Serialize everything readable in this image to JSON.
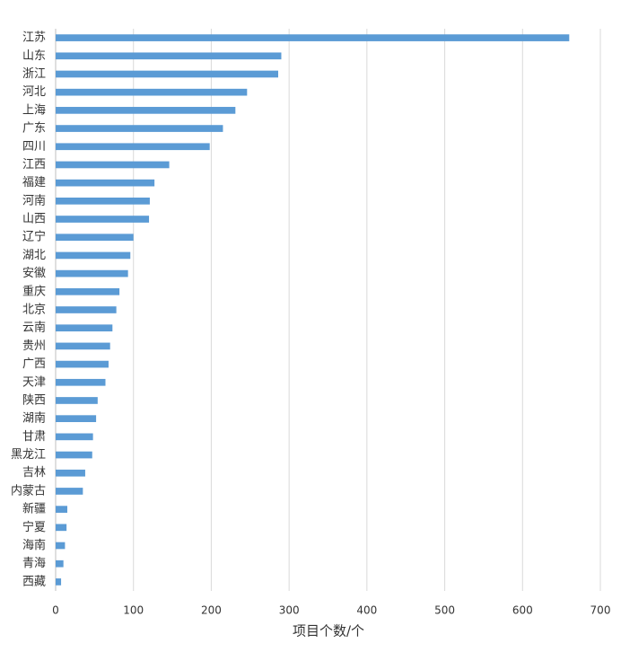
{
  "chart_data": {
    "type": "bar",
    "orientation": "horizontal",
    "x_label": "项目个数/个",
    "categories": [
      "江苏",
      "山东",
      "浙江",
      "河北",
      "上海",
      "广东",
      "四川",
      "江西",
      "福建",
      "河南",
      "山西",
      "辽宁",
      "湖北",
      "安徽",
      "重庆",
      "北京",
      "云南",
      "贵州",
      "广西",
      "天津",
      "陕西",
      "湖南",
      "甘肃",
      "黑龙江",
      "吉林",
      "内蒙古",
      "新疆",
      "宁夏",
      "海南",
      "青海",
      "西藏"
    ],
    "values": [
      660,
      290,
      286,
      246,
      231,
      215,
      198,
      146,
      127,
      121,
      120,
      100,
      96,
      93,
      82,
      78,
      73,
      70,
      68,
      64,
      54,
      52,
      48,
      47,
      38,
      35,
      15,
      14,
      12,
      10,
      7
    ],
    "color": "#5b9bd5",
    "xlim": [
      0,
      700
    ],
    "xticks": [
      0,
      100,
      200,
      300,
      400,
      500,
      600,
      700
    ],
    "grid": true
  }
}
